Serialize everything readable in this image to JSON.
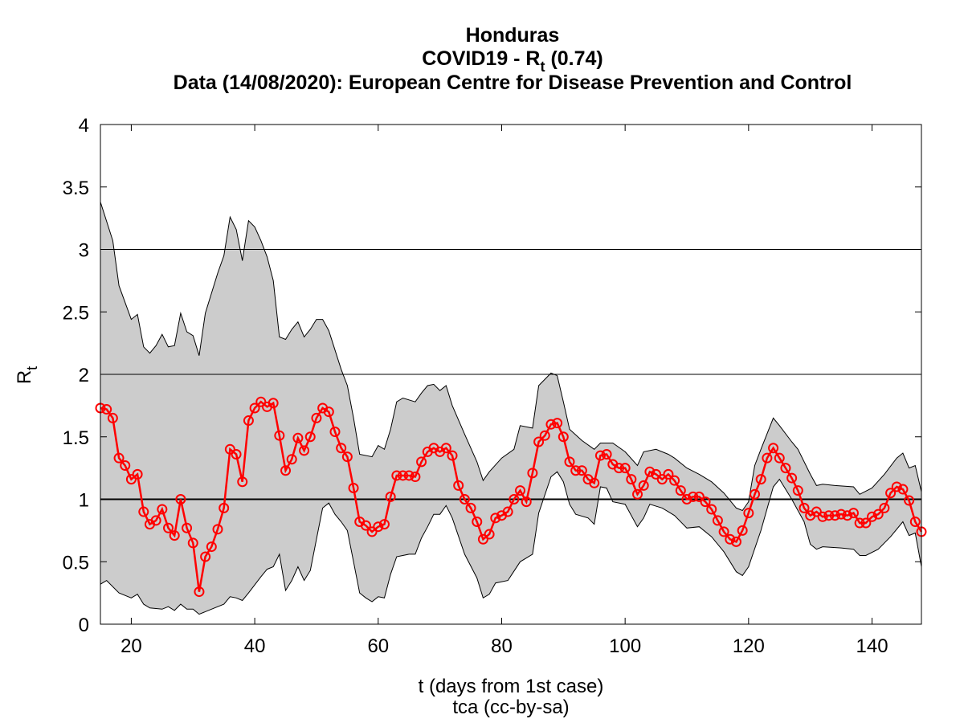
{
  "chart_data": {
    "type": "line",
    "title": "Honduras",
    "subtitle": {
      "main": "COVID19 - R",
      "subscript": "t",
      "suffix": " (0.74)"
    },
    "source": "Data (14/08/2020): European Centre for Disease Prevention and Control",
    "ylabel": {
      "main": "R",
      "subscript": "t"
    },
    "xlabel": "t (days from 1st case)",
    "caption": "tca (cc-by-sa)",
    "xlim": [
      15,
      148
    ],
    "ylim": [
      0,
      4
    ],
    "xticks": [
      20,
      40,
      60,
      80,
      100,
      120,
      140
    ],
    "yticks": [
      0,
      0.5,
      1,
      1.5,
      2,
      2.5,
      3,
      3.5,
      4
    ],
    "reference_lines": [
      1,
      2,
      3
    ],
    "series": [
      {
        "color": "#ff0000",
        "x": [
          15,
          16,
          17,
          18,
          19,
          20,
          21,
          22,
          23,
          24,
          25,
          26,
          27,
          28,
          29,
          30,
          31,
          32,
          33,
          34,
          35,
          36,
          37,
          38,
          39,
          40,
          41,
          42,
          43,
          44,
          45,
          46,
          47,
          48,
          49,
          50,
          51,
          52,
          53,
          54,
          55,
          56,
          57,
          58,
          59,
          60,
          61,
          62,
          63,
          64,
          65,
          66,
          67,
          68,
          69,
          70,
          71,
          72,
          73,
          74,
          75,
          76,
          77,
          78,
          79,
          80,
          81,
          82,
          83,
          84,
          85,
          86,
          87,
          88,
          89,
          90,
          91,
          92,
          93,
          94,
          95,
          96,
          97,
          98,
          99,
          100,
          101,
          102,
          103,
          104,
          105,
          106,
          107,
          108,
          109,
          110,
          111,
          112,
          113,
          114,
          115,
          116,
          117,
          118,
          119,
          120,
          121,
          122,
          123,
          124,
          125,
          126,
          127,
          128,
          129,
          130,
          131,
          132,
          133,
          134,
          135,
          136,
          137,
          138,
          139,
          140,
          141,
          142,
          143,
          144,
          145,
          146,
          147,
          148
        ],
        "values": [
          1.73,
          1.72,
          1.65,
          1.33,
          1.27,
          1.16,
          1.2,
          0.9,
          0.8,
          0.83,
          0.92,
          0.77,
          0.71,
          1.0,
          0.77,
          0.65,
          0.26,
          0.54,
          0.62,
          0.76,
          0.93,
          1.4,
          1.36,
          1.14,
          1.63,
          1.73,
          1.78,
          1.74,
          1.77,
          1.51,
          1.23,
          1.32,
          1.49,
          1.39,
          1.5,
          1.65,
          1.73,
          1.7,
          1.54,
          1.41,
          1.34,
          1.09,
          0.82,
          0.79,
          0.74,
          0.78,
          0.8,
          1.02,
          1.19,
          1.19,
          1.19,
          1.18,
          1.3,
          1.38,
          1.41,
          1.38,
          1.41,
          1.35,
          1.11,
          1.0,
          0.93,
          0.82,
          0.68,
          0.72,
          0.85,
          0.87,
          0.9,
          1.0,
          1.07,
          0.98,
          1.21,
          1.46,
          1.51,
          1.6,
          1.61,
          1.5,
          1.3,
          1.23,
          1.23,
          1.16,
          1.13,
          1.35,
          1.36,
          1.28,
          1.25,
          1.25,
          1.16,
          1.04,
          1.11,
          1.22,
          1.2,
          1.16,
          1.2,
          1.15,
          1.07,
          1.0,
          1.02,
          1.02,
          0.98,
          0.92,
          0.83,
          0.74,
          0.68,
          0.66,
          0.75,
          0.89,
          1.04,
          1.16,
          1.33,
          1.41,
          1.33,
          1.25,
          1.17,
          1.07,
          0.93,
          0.87,
          0.9,
          0.86,
          0.87,
          0.87,
          0.88,
          0.87,
          0.89,
          0.81,
          0.81,
          0.86,
          0.88,
          0.93,
          1.05,
          1.1,
          1.08,
          0.99,
          0.82,
          0.74
        ]
      }
    ],
    "band": {
      "color": "#cccccc",
      "upper": {
        "x": [
          15,
          17,
          18,
          20,
          21,
          22,
          23,
          24,
          25,
          26,
          27,
          28,
          29,
          30,
          31,
          32,
          34,
          35,
          36,
          37,
          38,
          39,
          40,
          41,
          42,
          43,
          44,
          45,
          46,
          47,
          48,
          49,
          50,
          51,
          52,
          54,
          55,
          56,
          57,
          59,
          60,
          61,
          62,
          63,
          64,
          66,
          67,
          68,
          69,
          70,
          71,
          72,
          74,
          76,
          77,
          78,
          80,
          82,
          83,
          85,
          86,
          88,
          89,
          90,
          91,
          93,
          95,
          96,
          98,
          100,
          102,
          103,
          105,
          107,
          108,
          110,
          112,
          114,
          116,
          118,
          119,
          120,
          121,
          122,
          124,
          125,
          127,
          128,
          130,
          131,
          132,
          134,
          137,
          138,
          140,
          142,
          144,
          145,
          146,
          147,
          148
        ],
        "values": [
          3.38,
          3.07,
          2.71,
          2.44,
          2.48,
          2.22,
          2.17,
          2.23,
          2.32,
          2.22,
          2.23,
          2.49,
          2.34,
          2.31,
          2.15,
          2.49,
          2.81,
          2.95,
          3.26,
          3.16,
          2.91,
          3.23,
          3.18,
          3.07,
          2.94,
          2.75,
          2.3,
          2.28,
          2.36,
          2.42,
          2.3,
          2.36,
          2.44,
          2.44,
          2.35,
          2.04,
          1.91,
          1.65,
          1.36,
          1.34,
          1.43,
          1.4,
          1.56,
          1.78,
          1.81,
          1.78,
          1.85,
          1.91,
          1.92,
          1.87,
          1.91,
          1.75,
          1.52,
          1.3,
          1.15,
          1.22,
          1.33,
          1.4,
          1.59,
          1.57,
          1.91,
          2.01,
          1.99,
          1.78,
          1.56,
          1.47,
          1.4,
          1.45,
          1.45,
          1.38,
          1.27,
          1.38,
          1.4,
          1.36,
          1.33,
          1.25,
          1.2,
          1.14,
          1.05,
          0.93,
          0.91,
          0.98,
          1.27,
          1.4,
          1.65,
          1.59,
          1.46,
          1.4,
          1.2,
          1.11,
          1.12,
          1.11,
          1.1,
          1.04,
          1.09,
          1.2,
          1.33,
          1.37,
          1.25,
          1.27,
          1.06
        ]
      },
      "lower": {
        "x": [
          15,
          16,
          18,
          20,
          21,
          22,
          23,
          25,
          26,
          27,
          28,
          29,
          30,
          31,
          33,
          35,
          36,
          37,
          38,
          39,
          41,
          42,
          43,
          44,
          45,
          46,
          47,
          48,
          49,
          50,
          51,
          52,
          53,
          54,
          55,
          56,
          57,
          58,
          59,
          60,
          61,
          62,
          63,
          65,
          66,
          67,
          68,
          69,
          70,
          71,
          72,
          74,
          76,
          77,
          78,
          79,
          81,
          83,
          85,
          86,
          88,
          89,
          90,
          91,
          92,
          94,
          95,
          96,
          97,
          98,
          100,
          102,
          103,
          104,
          106,
          108,
          110,
          112,
          114,
          116,
          118,
          119,
          120,
          122,
          124,
          125,
          127,
          129,
          130,
          131,
          132,
          135,
          137,
          138,
          139,
          141,
          143,
          145,
          146,
          147,
          148
        ],
        "values": [
          0.32,
          0.35,
          0.25,
          0.21,
          0.24,
          0.16,
          0.13,
          0.12,
          0.14,
          0.11,
          0.16,
          0.12,
          0.12,
          0.08,
          0.12,
          0.16,
          0.22,
          0.21,
          0.19,
          0.25,
          0.38,
          0.44,
          0.46,
          0.56,
          0.27,
          0.35,
          0.46,
          0.35,
          0.43,
          0.68,
          0.93,
          0.97,
          0.88,
          0.82,
          0.75,
          0.5,
          0.25,
          0.21,
          0.18,
          0.22,
          0.21,
          0.4,
          0.54,
          0.56,
          0.56,
          0.69,
          0.78,
          0.88,
          0.88,
          0.95,
          0.85,
          0.56,
          0.37,
          0.21,
          0.24,
          0.33,
          0.35,
          0.5,
          0.56,
          0.89,
          1.18,
          1.22,
          1.14,
          0.96,
          0.88,
          0.85,
          0.8,
          1.1,
          1.09,
          0.98,
          0.96,
          0.78,
          0.85,
          0.96,
          0.93,
          0.87,
          0.77,
          0.78,
          0.7,
          0.58,
          0.42,
          0.39,
          0.46,
          0.75,
          1.1,
          1.16,
          1.0,
          0.82,
          0.64,
          0.6,
          0.62,
          0.61,
          0.6,
          0.55,
          0.55,
          0.6,
          0.7,
          0.82,
          0.71,
          0.73,
          0.46
        ]
      }
    }
  }
}
